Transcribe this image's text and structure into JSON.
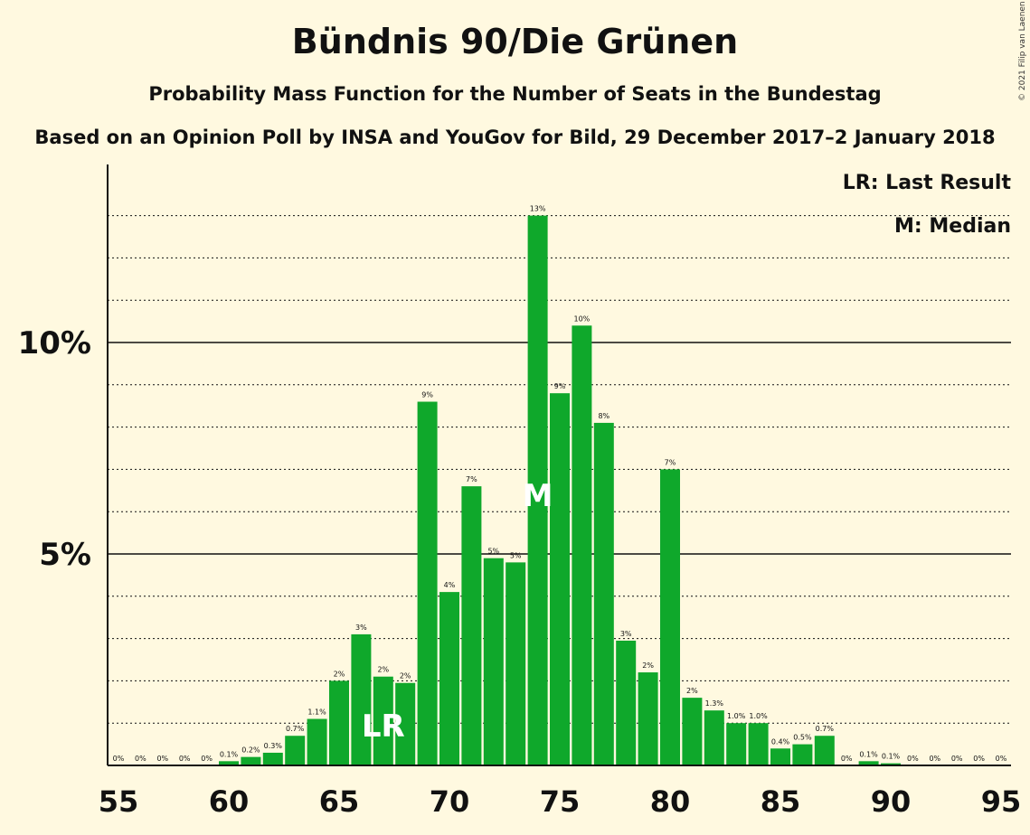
{
  "title": "Bündnis 90/Die Grünen",
  "subtitle": "Probability Mass Function for the Number of Seats in the Bundestag",
  "source": "Based on an Opinion Poll by INSA and YouGov for Bild, 29 December 2017–2 January 2018",
  "copyright": "© 2021 Filip van Laenen",
  "legend": {
    "last_result": "LR: Last Result",
    "median": "M: Median"
  },
  "colors": {
    "bar": "#0FA82B",
    "background": "#FFF9E0",
    "text": "#111111"
  },
  "chart_data": {
    "type": "bar",
    "title": "Bündnis 90/Die Grünen",
    "xlabel": "",
    "ylabel": "",
    "x": [
      55,
      56,
      57,
      58,
      59,
      60,
      61,
      62,
      63,
      64,
      65,
      66,
      67,
      68,
      69,
      70,
      71,
      72,
      73,
      74,
      75,
      76,
      77,
      78,
      79,
      80,
      81,
      82,
      83,
      84,
      85,
      86,
      87,
      88,
      89,
      90,
      91,
      92,
      93,
      94,
      95
    ],
    "values": [
      0,
      0,
      0,
      0,
      0,
      0.1,
      0.2,
      0.3,
      0.7,
      1.1,
      2.0,
      3.1,
      2.1,
      1.95,
      8.6,
      4.1,
      6.6,
      4.9,
      4.8,
      13.0,
      8.8,
      10.4,
      8.1,
      2.95,
      2.2,
      7.0,
      1.6,
      1.3,
      1.0,
      1.0,
      0.4,
      0.5,
      0.7,
      0,
      0.1,
      0.05,
      0,
      0,
      0,
      0,
      0
    ],
    "value_labels": [
      "0%",
      "0%",
      "0%",
      "0%",
      "0%",
      "0.1%",
      "0.2%",
      "0.3%",
      "0.7%",
      "1.1%",
      "2%",
      "3%",
      "2%",
      "2%",
      "9%",
      "4%",
      "7%",
      "5%",
      "5%",
      "13%",
      "9%",
      "10%",
      "8%",
      "3%",
      "2%",
      "7%",
      "2%",
      "1.3%",
      "1.0%",
      "1.0%",
      "0.4%",
      "0.5%",
      "0.7%",
      "0%",
      "0.1%",
      "0.1%",
      "0%",
      "0%",
      "0%",
      "0%",
      "0%"
    ],
    "x_ticks": [
      55,
      60,
      65,
      70,
      75,
      80,
      85,
      90,
      95
    ],
    "x_tick_labels": [
      "55",
      "60",
      "65",
      "70",
      "75",
      "80",
      "85",
      "90",
      "95"
    ],
    "y_ticks": [
      5,
      10
    ],
    "y_tick_labels": [
      "5%",
      "10%"
    ],
    "ylim": [
      0,
      14
    ],
    "xlim": [
      54.5,
      95.5
    ],
    "grid": "dotted every 1%, solid at 5% and 10%",
    "last_result_seat": 67,
    "last_result_label": "LR",
    "median_seat": 74,
    "median_label": "M",
    "legend_position": "top-right"
  }
}
